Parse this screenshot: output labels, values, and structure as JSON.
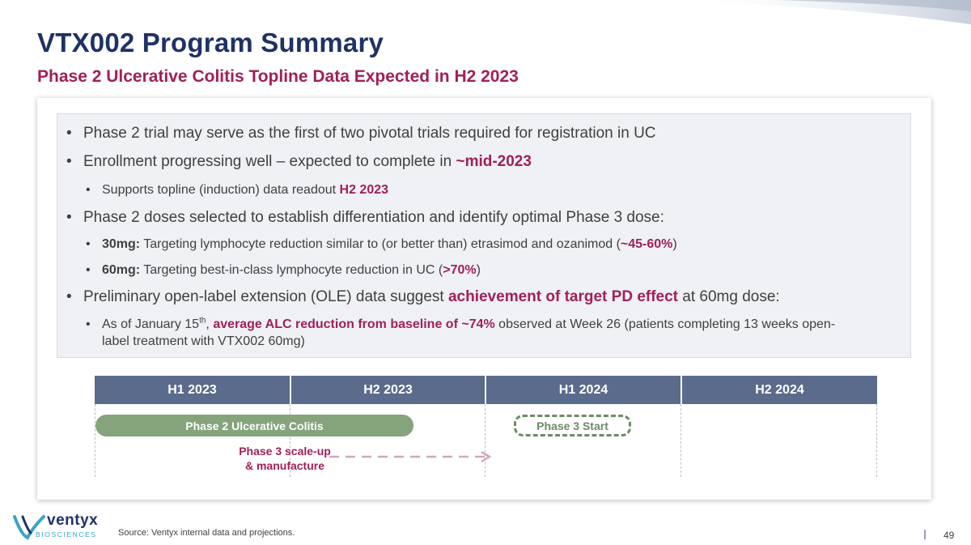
{
  "slide": {
    "title": "VTX002 Program Summary",
    "subtitle": "Phase 2 Ulcerative Colitis Topline Data Expected in H2 2023"
  },
  "bullets": {
    "b1": "Phase 2 trial may serve as the first of two pivotal trials required for registration in UC",
    "b2_text": "Enrollment progressing well – expected to complete in ",
    "b2_hl": "~mid-2023",
    "b2a_text": "Supports topline (induction) data readout ",
    "b2a_hl": "H2 2023",
    "b3": "Phase 2 doses selected to establish differentiation and identify optimal Phase 3 dose:",
    "b3a_bold": "30mg:",
    "b3a_text": " Targeting lymphocyte reduction similar to (or better than) etrasimod and ozanimod (",
    "b3a_hl": "~45-60%",
    "b3a_end": ")",
    "b3b_bold": "60mg:",
    "b3b_text": " Targeting best-in-class lymphocyte reduction in UC (",
    "b3b_hl": ">70%",
    "b3b_end": ")",
    "b4_text": "Preliminary open-label extension (OLE) data suggest ",
    "b4_hl": "achievement of target PD effect",
    "b4_end": " at 60mg dose:",
    "b4a_pre": "As of January 15",
    "b4a_sup": "th",
    "b4a_comma": ", ",
    "b4a_hl": "average ALC reduction from baseline of ~74%",
    "b4a_text": " observed at Week 26 (patients completing 13 weeks open-",
    "b4a_line2": "label treatment with VTX002 60mg)"
  },
  "bullet_char": "•",
  "timeline": {
    "periods": [
      "H1 2023",
      "H2 2023",
      "H1 2024",
      "H2 2024"
    ],
    "phase2_bar": "Phase 2 Ulcerative Colitis",
    "phase3_start": "Phase 3 Start",
    "scaleup_line1": "Phase 3 scale-up",
    "scaleup_line2": "& manufacture"
  },
  "footer": {
    "logo_word": "ventyx",
    "logo_sub": "BIOSCIENCES",
    "source": "Source: Ventyx internal data and projections.",
    "page_number": "49"
  },
  "colors": {
    "title": "#1f3264",
    "accent": "#a0205a",
    "timeline_header": "#5a6b8c",
    "phase2_bar": "#85a47c",
    "phase3_dash": "#6d8b65",
    "arrow": "#d4a6bf"
  }
}
